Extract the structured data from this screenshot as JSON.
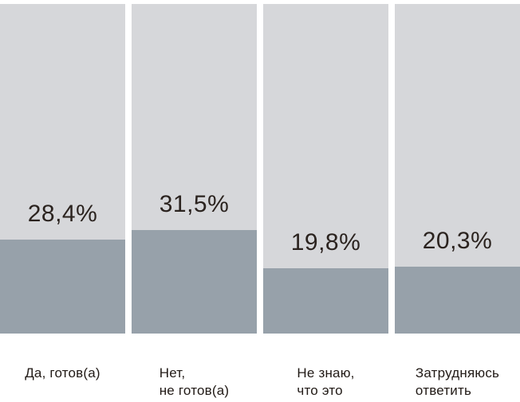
{
  "chart_data": {
    "type": "bar",
    "title": "",
    "xlabel": "",
    "ylabel": "",
    "unit": "%",
    "ylim": [
      0,
      100
    ],
    "grid": false,
    "legend": "none",
    "categories": [
      "Да, готов(а)",
      "Нет, не готов(а)",
      "Не знаю, что это",
      "Затрудняюсь ответить"
    ],
    "category_lines": [
      [
        "Да, готов(а)"
      ],
      [
        "Нет,",
        "не готов(а)"
      ],
      [
        "Не знаю,",
        "что это"
      ],
      [
        "Затрудняюсь",
        "ответить"
      ]
    ],
    "values": [
      28.4,
      31.5,
      19.8,
      20.3
    ],
    "value_labels": [
      "28,4%",
      "31,5%",
      "19,8%",
      "20,3%"
    ],
    "colors": {
      "track": "#d6d7da",
      "fill": "#97a1aa",
      "value_text": "#2b231f",
      "label_text": "#211a16",
      "background": "#ffffff"
    }
  }
}
